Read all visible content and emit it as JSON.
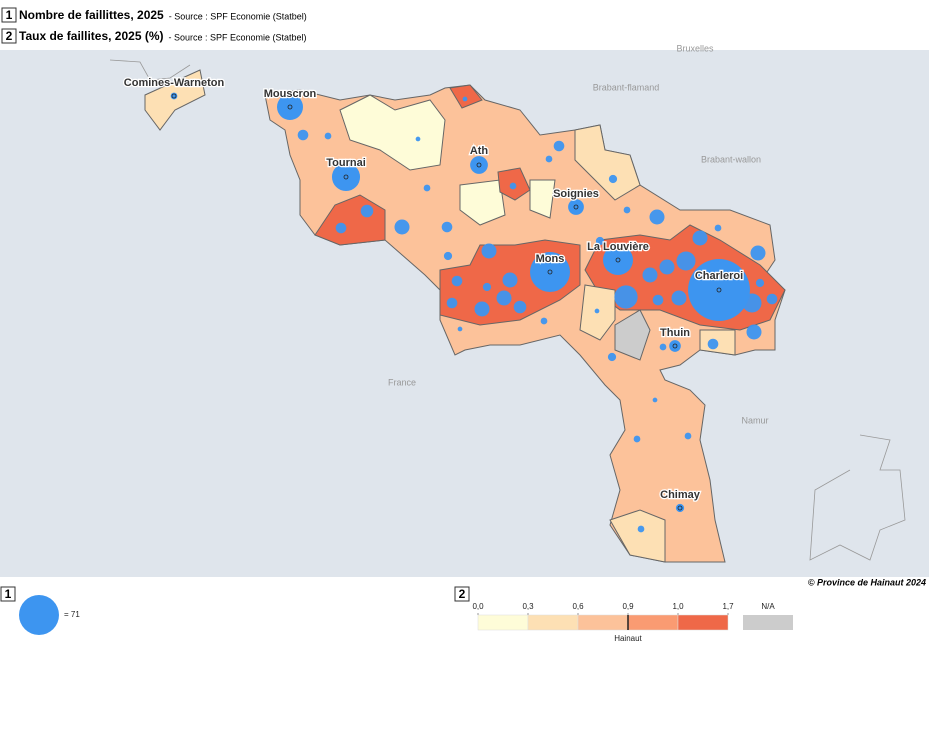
{
  "header": [
    {
      "number": "1",
      "title": "Nombre de faillittes, 2025",
      "source": "- Source : SPF Economie (Statbel)"
    },
    {
      "number": "2",
      "title": "Taux de faillites, 2025 (%)",
      "source": "- Source : SPF Economie (Statbel)"
    }
  ],
  "map": {
    "regions": [
      "Bruxelles",
      "Brabant-flamand",
      "Brabant-wallon",
      "France",
      "Namur"
    ],
    "bubble_color": "#3d95f0",
    "cities": [
      {
        "label": "Comines-Warneton",
        "value": 2
      },
      {
        "label": "Mouscron",
        "value": 30
      },
      {
        "label": "Tournai",
        "value": 35
      },
      {
        "label": "Ath",
        "value": 14
      },
      {
        "label": "Soignies",
        "value": 11
      },
      {
        "label": "La Louvière",
        "value": 40
      },
      {
        "label": "Mons",
        "value": 71
      },
      {
        "label": "Charleroi",
        "value": 170
      },
      {
        "label": "Thuin",
        "value": 6
      },
      {
        "label": "Chimay",
        "value": 3
      }
    ],
    "bubbles": [
      5,
      2,
      7,
      5,
      10,
      5,
      2,
      1,
      1,
      2,
      5,
      2,
      10,
      3,
      5,
      5,
      10,
      10,
      7,
      10,
      3,
      2,
      1,
      3,
      3,
      2,
      10,
      10,
      16,
      10,
      24,
      5,
      10,
      10,
      2,
      10,
      16,
      5,
      3,
      10,
      5,
      2,
      3,
      1,
      1,
      2,
      2,
      2
    ]
  },
  "copyright": "© Province de Hainaut 2024",
  "size_legend": {
    "number": "1",
    "value": 71,
    "label": "= 71"
  },
  "color_legend": {
    "number": "2",
    "ticks": [
      {
        "value": 0.0,
        "label": "0,0"
      },
      {
        "value": 0.3,
        "label": "0,3"
      },
      {
        "value": 0.6,
        "label": "0,6"
      },
      {
        "value": 0.9,
        "label": "0,9"
      },
      {
        "value": 1.0,
        "label": "1,0"
      },
      {
        "value": 1.7,
        "label": "1,7"
      }
    ],
    "colors": [
      "#fefcd8",
      "#fde0b4",
      "#fcc29a",
      "#fa9b72",
      "#ef6848"
    ],
    "na_label": "N/A",
    "na_color": "#cccccc",
    "reference": {
      "value": 0.9,
      "label": "Hainaut"
    }
  }
}
